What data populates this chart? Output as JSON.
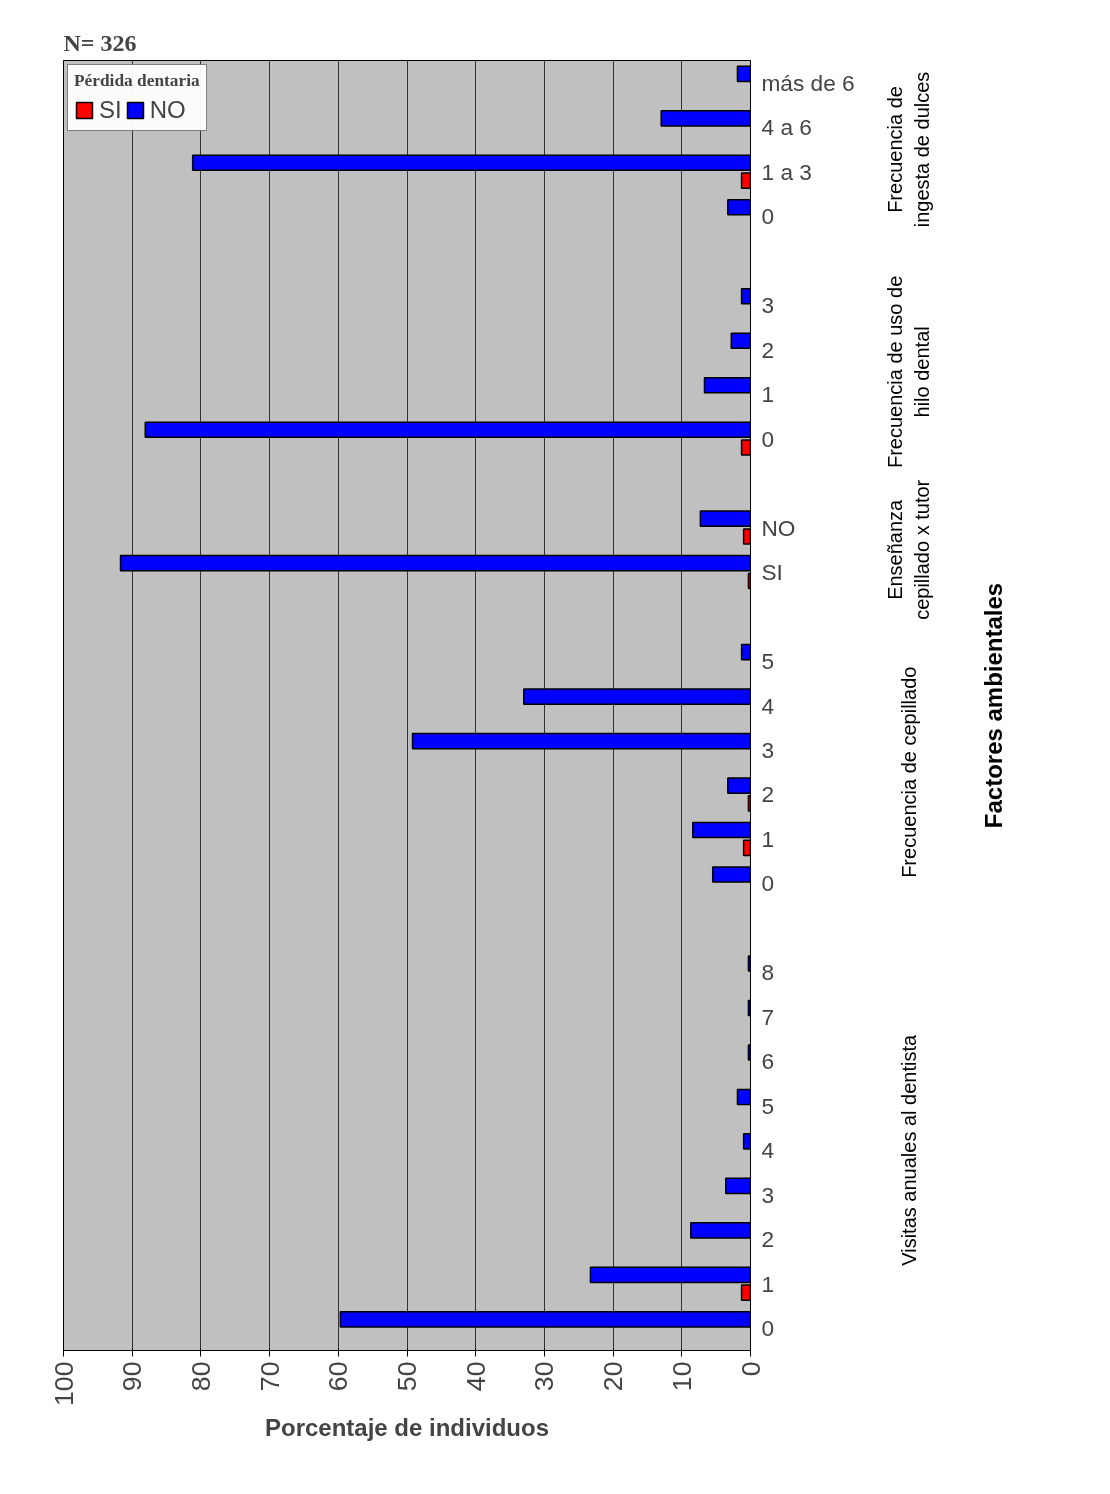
{
  "chart_data": {
    "type": "bar",
    "orientation": "horizontal",
    "title": "N= 326",
    "legend_title": "Pérdida dentaria",
    "xlabel": "Porcentaje de individuos",
    "categories": [
      "más de 6",
      "4 a 6",
      "1 a 3",
      "0",
      null,
      "3",
      "2",
      "1",
      "0",
      null,
      "NO",
      "SI",
      null,
      "5",
      "4",
      "3",
      "2",
      "1",
      "0",
      null,
      "8",
      "7",
      "6",
      "5",
      "4",
      "3",
      "2",
      "1",
      "0"
    ],
    "series": [
      {
        "name": "NO",
        "color": "#0000ff",
        "values": [
          1.9,
          13.0,
          81.2,
          3.3,
          null,
          1.3,
          2.8,
          6.7,
          88.1,
          null,
          7.3,
          91.7,
          null,
          1.3,
          33.0,
          49.2,
          3.3,
          8.4,
          5.5,
          null,
          0.3,
          0.3,
          0.3,
          1.9,
          1.0,
          3.6,
          8.7,
          23.3,
          59.7
        ]
      },
      {
        "name": "SI",
        "color": "#ff0000",
        "values": [
          null,
          null,
          1.3,
          null,
          null,
          null,
          null,
          null,
          1.3,
          null,
          1.0,
          0.3,
          null,
          null,
          null,
          null,
          0.3,
          1.0,
          null,
          null,
          null,
          null,
          null,
          null,
          null,
          null,
          null,
          1.3,
          null
        ]
      }
    ],
    "xlim": [
      100,
      0
    ],
    "xticks": [
      0,
      10,
      20,
      30,
      40,
      50,
      60,
      70,
      80,
      90,
      100
    ],
    "grid": "x",
    "legend": "top left",
    "annotations": [
      "Frecuencia de ingesta de dulces",
      "Frecuencia de uso de hilo dental",
      "Enseñanza cepillado x tutor",
      "Frecuencia de cepillado",
      "Visitas anuales al dentista",
      "Factores ambientales"
    ]
  }
}
